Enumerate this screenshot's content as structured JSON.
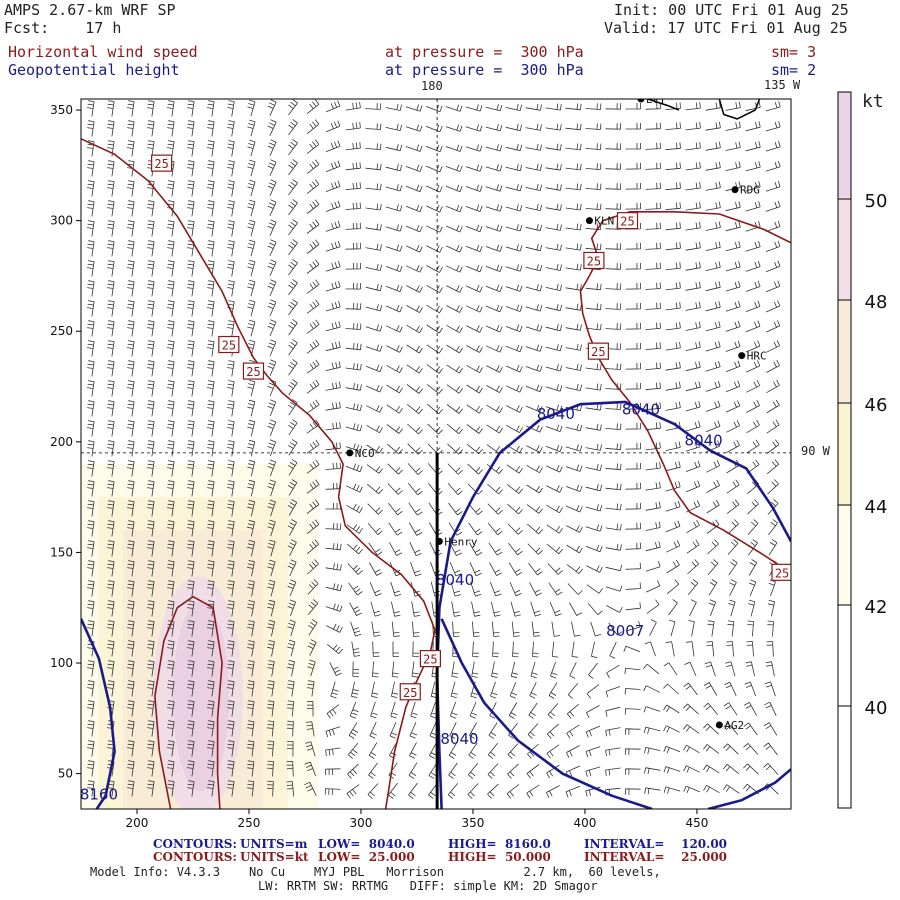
{
  "header": {
    "model": "AMPS 2.67-km WRF SP",
    "fcst": "Fcst:    17 h",
    "init": "Init: 00 UTC Fri 01 Aug 25",
    "valid": "Valid: 17 UTC Fri 01 Aug 25",
    "field1": "Horizontal wind speed",
    "field1_level": "at pressure =  300 hPa",
    "field1_sm": "sm= 3",
    "field2": "Geopotential height",
    "field2_level": "at pressure =  300 hPa",
    "field2_sm": "sm= 2"
  },
  "map_labels": {
    "lon_180": "180",
    "lon_135w": "135 W",
    "lon_90w": "90 W"
  },
  "stations": [
    {
      "name": "LVT",
      "x": 425,
      "y": 355
    },
    {
      "name": "RDG",
      "x": 467,
      "y": 314
    },
    {
      "name": "KLN",
      "x": 402,
      "y": 300
    },
    {
      "name": "HRC",
      "x": 470,
      "y": 239
    },
    {
      "name": "NCO",
      "x": 295,
      "y": 195
    },
    {
      "name": "Henry",
      "x": 335,
      "y": 155
    },
    {
      "name": "AG2",
      "x": 460,
      "y": 72
    },
    {
      "name": "",
      "x": 489,
      "y": 141
    }
  ],
  "colorbar": {
    "unit": "kt",
    "ticks": [
      "40",
      "42",
      "44",
      "46",
      "48",
      "50"
    ],
    "colors": [
      "#ffffff",
      "#fdfcec",
      "#fbf3cf",
      "#f8ecd9",
      "#f3dfe8",
      "#ecd4e8"
    ]
  },
  "footer": {
    "contours1_label": "CONTOURS:",
    "contours1_units": "UNITS=m",
    "contours1_low": "LOW=  8040.0",
    "contours1_high": "HIGH=  8160.0",
    "contours1_interval": "INTERVAL=    120.00",
    "contours2_label": "CONTOURS:",
    "contours2_units": "UNITS=kt",
    "contours2_low": "LOW=  25.000",
    "contours2_high": "HIGH=  50.000",
    "contours2_interval": "INTERVAL=    25.000",
    "info1": "Model Info: V4.3.3    No Cu    MYJ PBL   Morrison           2.7 km,  60 levels,",
    "info2": "LW: RRTM SW: RRTMG   DIFF: simple KM: 2D Smagor"
  },
  "chart_data": {
    "type": "contour-map",
    "xlim": [
      175,
      492
    ],
    "ylim": [
      34,
      355
    ],
    "xticks": [
      200,
      250,
      300,
      350,
      400,
      450
    ],
    "yticks": [
      50,
      100,
      150,
      200,
      250,
      300,
      350
    ],
    "height_contours": {
      "units": "m",
      "color": "#1a1a8c",
      "levels": [
        {
          "label": "8040",
          "points": [
            [
              336,
              34
            ],
            [
              335,
              60
            ],
            [
              334,
              95
            ],
            [
              335,
              125
            ],
            [
              340,
              155
            ],
            [
              350,
              175
            ],
            [
              362,
              195
            ],
            [
              380,
              210
            ],
            [
              398,
              217
            ],
            [
              418,
              218
            ],
            [
              440,
              208
            ],
            [
              456,
              196
            ]
          ]
        },
        {
          "label": "8040",
          "points": [
            [
              456,
              196
            ],
            [
              472,
              188
            ],
            [
              484,
              170
            ],
            [
              492,
              155
            ]
          ]
        },
        {
          "label": "8040",
          "points": [
            [
              336,
              120
            ],
            [
              345,
              100
            ],
            [
              355,
              82
            ],
            [
              370,
              65
            ],
            [
              390,
              50
            ],
            [
              412,
              40
            ],
            [
              430,
              34
            ]
          ]
        },
        {
          "label": "8040",
          "points": [
            [
              455,
              34
            ],
            [
              470,
              38
            ],
            [
              485,
              46
            ],
            [
              492,
              52
            ]
          ]
        },
        {
          "label": "8160",
          "points": [
            [
              175,
              120
            ],
            [
              183,
              102
            ],
            [
              188,
              80
            ],
            [
              190,
              60
            ],
            [
              186,
              40
            ],
            [
              182,
              34
            ]
          ]
        }
      ],
      "labels": [
        {
          "text": "8040",
          "x": 387,
          "y": 213
        },
        {
          "text": "8040",
          "x": 425,
          "y": 215
        },
        {
          "text": "8040",
          "x": 453,
          "y": 201
        },
        {
          "text": "8040",
          "x": 342,
          "y": 138
        },
        {
          "text": "8040",
          "x": 344,
          "y": 66
        },
        {
          "text": "8007",
          "x": 418,
          "y": 115
        },
        {
          "text": "8160",
          "x": 183,
          "y": 41
        }
      ]
    },
    "speed_contours": {
      "units": "kt",
      "color": "#8b1a1a",
      "levels": [
        {
          "label": "25",
          "points": [
            [
              175,
              337
            ],
            [
              190,
              330
            ],
            [
              205,
              318
            ],
            [
              218,
              302
            ],
            [
              228,
              285
            ],
            [
              238,
              268
            ],
            [
              245,
              252
            ],
            [
              252,
              238
            ],
            [
              258,
              230
            ],
            [
              265,
              222
            ],
            [
              277,
              212
            ],
            [
              287,
              200
            ],
            [
              292,
              190
            ],
            [
              290,
              175
            ],
            [
              293,
              162
            ],
            [
              305,
              150
            ],
            [
              318,
              140
            ],
            [
              328,
              128
            ],
            [
              333,
              115
            ],
            [
              331,
              105
            ],
            [
              325,
              92
            ],
            [
              320,
              80
            ],
            [
              315,
              60
            ],
            [
              312,
              40
            ],
            [
              311,
              34
            ]
          ]
        },
        {
          "label": "25",
          "points": [
            [
              492,
              290
            ],
            [
              480,
              296
            ],
            [
              460,
              303
            ],
            [
              440,
              304
            ],
            [
              420,
              304
            ],
            [
              408,
              300
            ],
            [
              403,
              292
            ],
            [
              406,
              283
            ],
            [
              402,
              275
            ],
            [
              398,
              268
            ],
            [
              399,
              258
            ],
            [
              402,
              248
            ],
            [
              406,
              238
            ],
            [
              412,
              228
            ],
            [
              420,
              218
            ],
            [
              428,
              205
            ],
            [
              435,
              190
            ],
            [
              440,
              178
            ],
            [
              447,
              168
            ],
            [
              462,
              160
            ],
            [
              478,
              150
            ],
            [
              490,
              142
            ]
          ]
        },
        {
          "label": "50",
          "points": [
            [
              215,
              34
            ],
            [
              210,
              60
            ],
            [
              208,
              85
            ],
            [
              212,
              110
            ],
            [
              218,
              125
            ],
            [
              225,
              130
            ],
            [
              234,
              125
            ],
            [
              238,
              100
            ],
            [
              236,
              75
            ],
            [
              236,
              50
            ],
            [
              237,
              34
            ]
          ]
        }
      ],
      "labels": [
        {
          "text": "25",
          "x": 211,
          "y": 326
        },
        {
          "text": "25",
          "x": 241,
          "y": 244
        },
        {
          "text": "25",
          "x": 252,
          "y": 232
        },
        {
          "text": "25",
          "x": 419,
          "y": 300
        },
        {
          "text": "25",
          "x": 404,
          "y": 282
        },
        {
          "text": "25",
          "x": 406,
          "y": 241
        },
        {
          "text": "25",
          "x": 488,
          "y": 141
        },
        {
          "text": "25",
          "x": 331,
          "y": 102
        },
        {
          "text": "25",
          "x": 322,
          "y": 87
        }
      ]
    },
    "shading": {
      "description_levels_kt": [
        40,
        42,
        44,
        46,
        48,
        50
      ],
      "core_axis_x": 225,
      "core_max_kt": 50
    },
    "wind_barbs": {
      "vortex_center": [
        420,
        110
      ],
      "jet_axis_x": 225
    },
    "coastline": {
      "color": "#000000",
      "points": [
        [
          428,
          355
        ],
        [
          437,
          352
        ],
        [
          442,
          350
        ]
      ]
    },
    "coastline2": {
      "points": [
        [
          460,
          355
        ],
        [
          462,
          348
        ],
        [
          468,
          346
        ],
        [
          476,
          350
        ],
        [
          478,
          355
        ]
      ]
    },
    "cross_section": {
      "x": 334,
      "y0": 34,
      "y1": 195
    },
    "lon_lines": [
      {
        "type": "vertical",
        "x": 334
      },
      {
        "type": "horizontal",
        "y": 195
      }
    ]
  }
}
